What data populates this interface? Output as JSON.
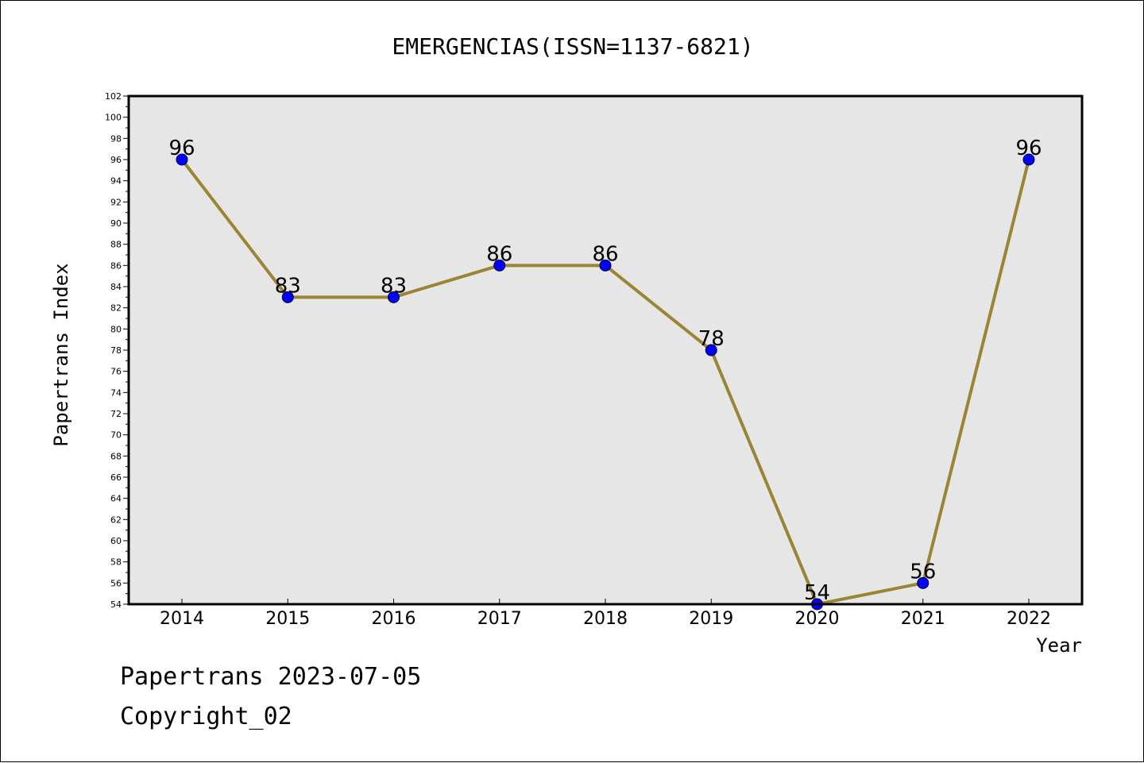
{
  "footer": {
    "line1": "Papertrans 2023-07-05",
    "line2": "Copyright_02"
  },
  "chart_data": {
    "type": "line",
    "title": "EMERGENCIAS(ISSN=1137-6821)",
    "xlabel": "Year",
    "ylabel": "Papertrans Index",
    "x": [
      "2014",
      "2015",
      "2016",
      "2017",
      "2018",
      "2019",
      "2020",
      "2021",
      "2022"
    ],
    "series": [
      {
        "values": [
          96,
          83,
          83,
          86,
          86,
          78,
          54,
          56,
          96
        ]
      }
    ],
    "point_labels": [
      "96",
      "83",
      "83",
      "86",
      "86",
      "78",
      "54",
      "56",
      "96"
    ],
    "ylim": [
      54,
      102
    ],
    "yticks": [
      "54",
      "56",
      "58",
      "60",
      "62",
      "64",
      "66",
      "68",
      "70",
      "72",
      "74",
      "76",
      "78",
      "80",
      "82",
      "84",
      "86",
      "88",
      "90",
      "92",
      "94",
      "96",
      "98",
      "100",
      "102"
    ],
    "grid": false,
    "legend": "none",
    "colors": {
      "plot_background": "#e6e6e6",
      "line": "#998533",
      "marker": "#0000ff",
      "frame": "#000000"
    }
  }
}
